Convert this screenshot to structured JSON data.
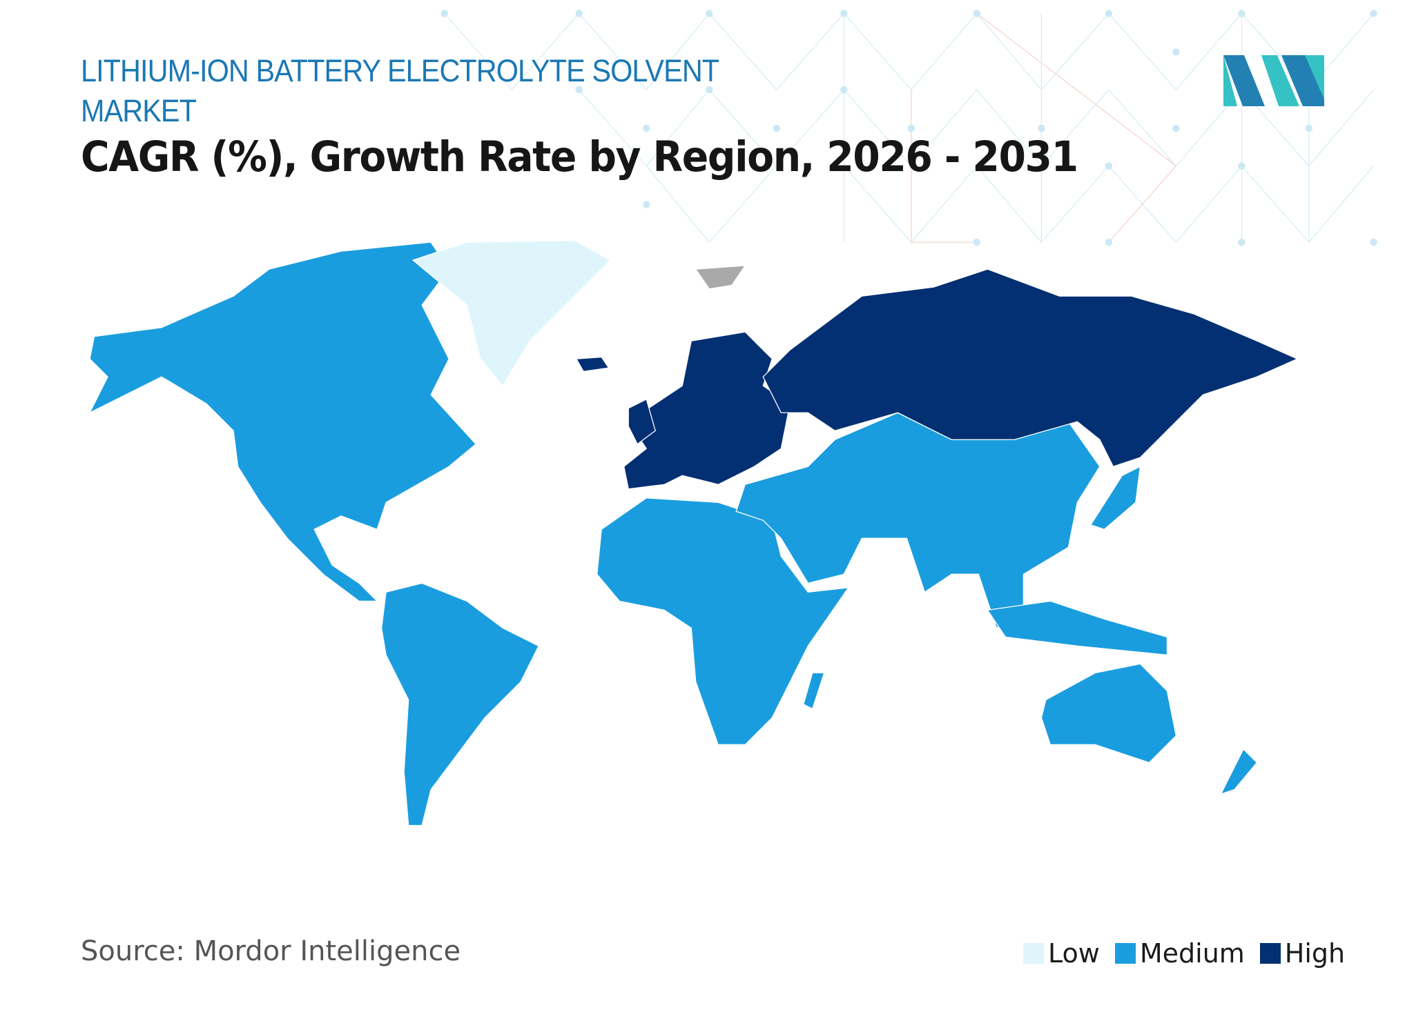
{
  "header": {
    "title": "LITHIUM-ION BATTERY ELECTROLYTE SOLVENT MARKET",
    "subtitle": "CAGR (%), Growth Rate by Region, 2026 - 2031"
  },
  "footer": {
    "source": "Source: Mordor Intelligence"
  },
  "legend": [
    {
      "label": "Low",
      "color": "#dff5fc"
    },
    {
      "label": "Medium",
      "color": "#1a9ddf"
    },
    {
      "label": "High",
      "color": "#032f73"
    }
  ],
  "colors": {
    "title": "#1a78b4",
    "no_data": "#a9a9a9",
    "logo_dark": "#2380b2",
    "logo_light": "#36c1c4"
  },
  "regions": [
    {
      "name": "North America",
      "level": "Medium"
    },
    {
      "name": "Greenland",
      "level": "Low"
    },
    {
      "name": "South America",
      "level": "Medium"
    },
    {
      "name": "Europe",
      "level": "High"
    },
    {
      "name": "Russia",
      "level": "High"
    },
    {
      "name": "Africa",
      "level": "Medium"
    },
    {
      "name": "Middle East",
      "level": "Medium"
    },
    {
      "name": "Asia-Pacific",
      "level": "Medium"
    },
    {
      "name": "Australia and New Zealand",
      "level": "Medium"
    }
  ]
}
